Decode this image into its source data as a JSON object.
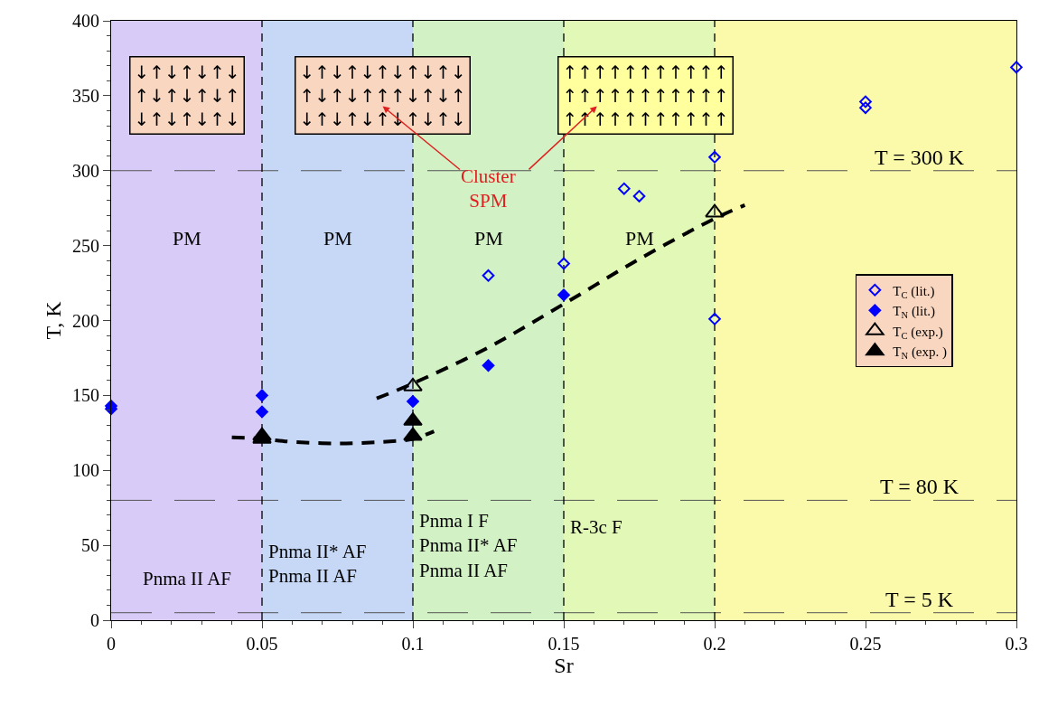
{
  "chart_data": {
    "type": "scatter",
    "xlabel": "Sr",
    "ylabel": "T, K",
    "xlim": [
      0,
      0.3
    ],
    "xticks": [
      0,
      0.05,
      0.1,
      0.15,
      0.2,
      0.25,
      0.3
    ],
    "ylim": [
      0,
      400
    ],
    "yticks": [
      0,
      50,
      100,
      150,
      200,
      250,
      300,
      350,
      400
    ],
    "grid": false,
    "legend": "right",
    "series": [
      {
        "name": "T$_{C}$ (lit.)",
        "color": "#0000ff",
        "marker": "diamond",
        "x": [
          0.125,
          0.15,
          0.17,
          0.175,
          0.2,
          0.2,
          0.25,
          0.25,
          0.3
        ],
        "values": [
          230,
          238,
          288,
          283,
          309,
          201,
          346,
          342,
          369
        ]
      },
      {
        "name": "T$_{N}$ (lit.)",
        "color": "#0000ff",
        "marker": "diamond",
        "x": [
          0,
          0,
          0.05,
          0.05,
          0.1,
          0.125,
          0.15
        ],
        "values": [
          143,
          141,
          150,
          139,
          146,
          170,
          217
        ]
      },
      {
        "name": "T$_{C}$ (exp.)",
        "color": "#000000",
        "marker": "triangle",
        "x": [
          0.1,
          0.2
        ],
        "values": [
          156,
          272
        ]
      },
      {
        "name": "T$_{N}$ (exp. )",
        "color": "#000000",
        "marker": "triangle",
        "x": [
          0.05,
          0.05,
          0.1,
          0.1
        ],
        "values": [
          123,
          121,
          133,
          123
        ]
      },
      {
        "type": "line",
        "color": "#000000",
        "line_style": "dashed",
        "marker": "none",
        "x": [
          0.04,
          0.05,
          0.06,
          0.075,
          0.09,
          0.1,
          0.107
        ],
        "values": [
          122,
          121,
          119,
          118,
          119,
          121,
          126
        ]
      },
      {
        "type": "line",
        "color": "#000000",
        "line_style": "dashed",
        "marker": "none",
        "x": [
          0.088,
          0.1,
          0.125,
          0.15,
          0.175,
          0.2,
          0.21
        ],
        "values": [
          148,
          158,
          182,
          211,
          241,
          268,
          277
        ]
      }
    ],
    "bands": [
      {
        "axis": "x",
        "from": 0,
        "to": 0.05,
        "color": "#d8cbf8"
      },
      {
        "axis": "x",
        "from": 0.05,
        "to": 0.1,
        "color": "#c6d8f6"
      },
      {
        "axis": "x",
        "from": 0.1,
        "to": 0.15,
        "color": "#d2f2c6"
      },
      {
        "axis": "x",
        "from": 0.15,
        "to": 0.2,
        "color": "#e2f8b6"
      },
      {
        "axis": "x",
        "from": 0.2,
        "to": 0.3,
        "color": "#fafaaa"
      }
    ],
    "ref_lines": [
      {
        "axis": "y",
        "value": 300,
        "label": "T = 300 K",
        "color": "#555555",
        "line_style": "dashed"
      },
      {
        "axis": "y",
        "value": 80,
        "label": "T = 80 K",
        "color": "#555555",
        "line_style": "dashed"
      },
      {
        "axis": "y",
        "value": 5,
        "label": "T = 5 K",
        "color": "#555555",
        "line_style": "dashed"
      },
      {
        "axis": "x",
        "value": 0.05,
        "color": "#000000",
        "line_style": "dashed"
      },
      {
        "axis": "x",
        "value": 0.1,
        "color": "#000000",
        "line_style": "dashed"
      },
      {
        "axis": "x",
        "value": 0.15,
        "color": "#000000",
        "line_style": "dashed"
      },
      {
        "axis": "x",
        "value": 0.2,
        "color": "#000000",
        "line_style": "dashed"
      }
    ],
    "annotations": [
      "↓↑↓↑↓↑↓\n↑↓↑↓↑↓↑\n↓↑↓↑↓↑↓",
      "↓↑↓↑↓↑↓↑↓↑↓\n↑↓↑↓↑↑↑↓↑↓↑\n↓↑↓↑↓↑↓↑↓↑↓",
      "↑↑↑↑↑↑↑↑↑↑↑\n↑↑↑↑↑↑↑↑↑↑↑\n↑↑↑↑↑↑↑↑↑↑↑",
      "Cluster\nSPM",
      "PM",
      "PM",
      "PM",
      "PM",
      "Pnma II AF",
      "Pnma II* AF\nPnma II AF",
      "Pnma I F\nPnma II* AF\nPnma II AF",
      "R-3c F"
    ]
  }
}
